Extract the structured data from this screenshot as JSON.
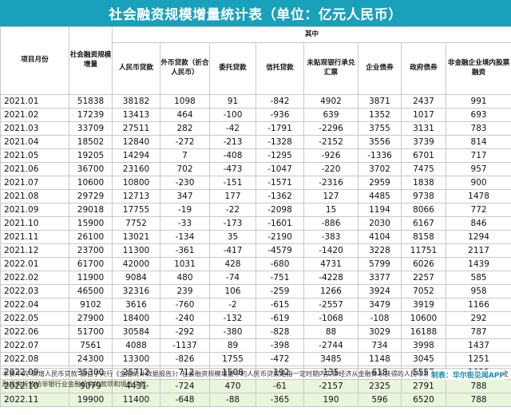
{
  "title": "社会融资规模增量统计表（单位：亿元人民币）",
  "header": {
    "period": "项目月份",
    "total": "社会融资规模增量",
    "group": "其中",
    "subs": [
      "人民币贷款",
      "外币贷款（折合人民币）",
      "委托贷款",
      "信托贷款",
      "未贴现银行承兑汇票",
      "企业债券",
      "政府债券",
      "非金融企业境内股票融资"
    ]
  },
  "rows": [
    [
      "2021.01",
      "51838",
      "38182",
      "1098",
      "91",
      "-842",
      "4902",
      "3871",
      "2437",
      "991"
    ],
    [
      "2021.02",
      "17239",
      "13413",
      "464",
      "-100",
      "-936",
      "639",
      "1352",
      "1017",
      "693"
    ],
    [
      "2021.03",
      "33709",
      "27511",
      "282",
      "-42",
      "-1791",
      "-2296",
      "3755",
      "3131",
      "783"
    ],
    [
      "2021.04",
      "18502",
      "12840",
      "-272",
      "-213",
      "-1328",
      "-2152",
      "3556",
      "3739",
      "814"
    ],
    [
      "2021.05",
      "19205",
      "14294",
      "7",
      "-408",
      "-1295",
      "-926",
      "-1336",
      "6701",
      "717"
    ],
    [
      "2021.06",
      "36700",
      "23160",
      "702",
      "-473",
      "-1047",
      "-220",
      "3702",
      "7475",
      "957"
    ],
    [
      "2021.07",
      "10600",
      "10800",
      "-230",
      "-151",
      "-1571",
      "-2316",
      "2959",
      "1838",
      "900"
    ],
    [
      "2021.08",
      "29729",
      "12713",
      "347",
      "177",
      "-1362",
      "127",
      "4485",
      "9738",
      "1478"
    ],
    [
      "2021.09",
      "29018",
      "17755",
      "-19",
      "-22",
      "-2098",
      "15",
      "1194",
      "8066",
      "772"
    ],
    [
      "2021.10",
      "15900",
      "7752",
      "-33",
      "-173",
      "-1601",
      "-886",
      "2030",
      "6167",
      "846"
    ],
    [
      "2021.11",
      "26100",
      "13021",
      "-134",
      "35",
      "-2190",
      "-383",
      "4104",
      "8158",
      "1294"
    ],
    [
      "2021.12",
      "23700",
      "11300",
      "-361",
      "-417",
      "-4579",
      "-1420",
      "3228",
      "11751",
      "2117"
    ],
    [
      "2022.01",
      "61700",
      "42000",
      "1031",
      "428",
      "-680",
      "4731",
      "5799",
      "6026",
      "1439"
    ],
    [
      "2022.02",
      "11900",
      "9084",
      "480",
      "-74",
      "-751",
      "-4228",
      "3377",
      "2257",
      "585"
    ],
    [
      "2022.03",
      "46500",
      "32316",
      "239",
      "106",
      "-259",
      "1266",
      "3924",
      "7052",
      "958"
    ],
    [
      "2022.04",
      "9102",
      "3616",
      "-760",
      "-2",
      "-615",
      "-2557",
      "3479",
      "3919",
      "1166"
    ],
    [
      "2022.05",
      "27900",
      "18400",
      "-240",
      "-132",
      "-619",
      "-1068",
      "-108",
      "10600",
      "292"
    ],
    [
      "2022.06",
      "51700",
      "30584",
      "-292",
      "-380",
      "-828",
      "88",
      "3029",
      "16188",
      "787"
    ],
    [
      "2022.07",
      "7561",
      "4088",
      "-1137",
      "89",
      "-398",
      "-2744",
      "734",
      "3998",
      "1437"
    ],
    [
      "2022.08",
      "24300",
      "13300",
      "-826",
      "1755",
      "-472",
      "3485",
      "1148",
      "3045",
      "1251"
    ],
    [
      "2022.09",
      "35300",
      "25712",
      "-712",
      "1508",
      "-192",
      "135",
      "618",
      "5557",
      "1022"
    ],
    [
      "2022.10",
      "9079",
      "4431",
      "-724",
      "470",
      "-61",
      "-2157",
      "2325",
      "2791",
      "788"
    ],
    [
      "2022.11",
      "19900",
      "11400",
      "-648",
      "-88",
      "-365",
      "190",
      "596",
      "6520",
      "788"
    ]
  ],
  "footnote": "本表中的\"新增人民币贷款\"源自于央行《金融统计数据报告》，社会融资规模增量中的人民币贷款是指一定时期内实体经济从金融体系获得的人民币和外币贷款，不包含银行业金融机构拆放给非银行业金融机构的款项和境外贷款。",
  "credit": "制表：华尔街见闻APP",
  "colors": {
    "title_bg": "#19a0ba",
    "highlight_green": "#e9f5dd",
    "credit": "#1a8fb0"
  }
}
